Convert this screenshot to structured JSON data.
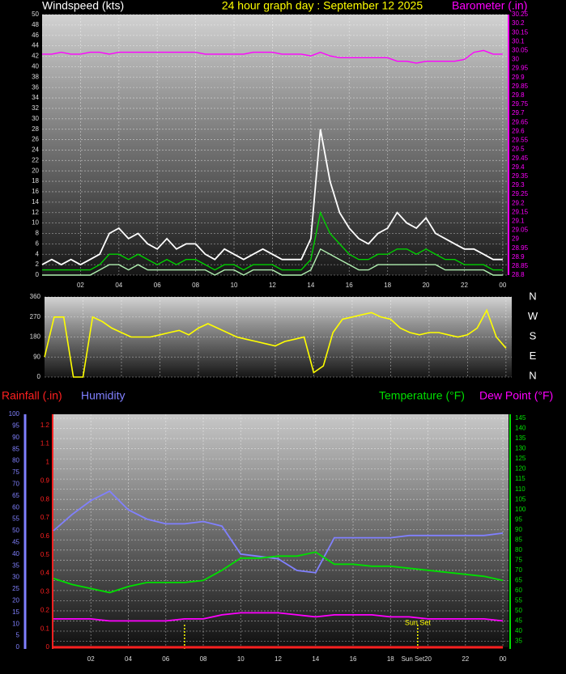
{
  "chart_data": [
    {
      "type": "line",
      "title": "24 hour graph day : September 12 2025",
      "y_label": "Windspeed (kts)",
      "y2_label": "Barometer (.in)",
      "x": [
        0,
        0.5,
        1,
        1.5,
        2,
        2.5,
        3,
        3.5,
        4,
        4.5,
        5,
        5.5,
        6,
        6.5,
        7,
        7.5,
        8,
        8.5,
        9,
        9.5,
        10,
        10.5,
        11,
        11.5,
        12,
        12.5,
        13,
        13.5,
        14,
        14.5,
        15,
        15.5,
        16,
        16.5,
        17,
        17.5,
        18,
        18.5,
        19,
        19.5,
        20,
        20.5,
        21,
        21.5,
        22,
        22.5,
        23,
        23.5,
        24
      ],
      "xlim": [
        0,
        24.3
      ],
      "xticks": [
        {
          "value": 2,
          "label": "02"
        },
        {
          "value": 4,
          "label": "04"
        },
        {
          "value": 6,
          "label": "06"
        },
        {
          "value": 8,
          "label": "08"
        },
        10,
        12,
        14,
        16,
        18,
        20,
        22,
        {
          "value": 24,
          "label": "00"
        }
      ],
      "ylim": [
        0,
        50
      ],
      "yticks": [
        0,
        2,
        4,
        6,
        8,
        10,
        12,
        14,
        16,
        18,
        20,
        22,
        24,
        26,
        28,
        30,
        32,
        34,
        36,
        38,
        40,
        42,
        44,
        46,
        48,
        50
      ],
      "y2lim": [
        28.8,
        30.25
      ],
      "y2ticks": [
        28.8,
        28.85,
        28.9,
        28.95,
        29,
        29.05,
        29.1,
        29.15,
        29.2,
        29.25,
        29.3,
        29.35,
        29.4,
        29.45,
        29.5,
        29.55,
        29.6,
        29.65,
        29.7,
        29.75,
        29.8,
        29.85,
        29.9,
        29.95,
        30,
        30.05,
        30.1,
        30.15,
        30.2,
        30.25
      ],
      "grid": true,
      "series": [
        {
          "color": "#ffffff",
          "values": [
            2,
            3,
            2,
            3,
            2,
            3,
            4,
            8,
            9,
            7,
            8,
            6,
            5,
            7,
            5,
            6,
            6,
            4,
            3,
            5,
            4,
            3,
            4,
            5,
            4,
            3,
            3,
            3,
            7,
            28,
            18,
            12,
            9,
            7,
            6,
            8,
            9,
            12,
            10,
            9,
            11,
            8,
            7,
            6,
            5,
            5,
            4,
            3,
            3
          ]
        },
        {
          "color": "#00d000",
          "values": [
            1,
            1,
            1,
            1,
            1,
            1,
            2,
            4,
            4,
            3,
            4,
            3,
            2,
            3,
            2,
            3,
            3,
            2,
            1,
            2,
            2,
            1,
            2,
            2,
            2,
            1,
            1,
            1,
            3,
            12,
            8,
            6,
            4,
            3,
            3,
            4,
            4,
            5,
            5,
            4,
            5,
            4,
            3,
            3,
            2,
            2,
            2,
            1,
            1
          ]
        },
        {
          "color": "#b0f0b0",
          "values": [
            0,
            0,
            0,
            0,
            0,
            0,
            1,
            2,
            2,
            1,
            2,
            1,
            1,
            1,
            1,
            1,
            1,
            1,
            0,
            1,
            1,
            0,
            1,
            1,
            1,
            0,
            0,
            0,
            1,
            5,
            4,
            3,
            2,
            1,
            1,
            2,
            2,
            2,
            2,
            2,
            2,
            2,
            1,
            1,
            1,
            1,
            1,
            0,
            0
          ]
        },
        {
          "color": "#ff00ff",
          "axis": "y2",
          "values": [
            30.03,
            30.03,
            30.04,
            30.03,
            30.03,
            30.04,
            30.04,
            30.03,
            30.04,
            30.04,
            30.04,
            30.04,
            30.04,
            30.04,
            30.04,
            30.04,
            30.04,
            30.03,
            30.03,
            30.03,
            30.03,
            30.03,
            30.04,
            30.04,
            30.04,
            30.03,
            30.03,
            30.03,
            30.02,
            30.04,
            30.02,
            30.01,
            30.01,
            30.01,
            30.01,
            30.01,
            30.01,
            29.99,
            29.99,
            29.98,
            29.99,
            29.99,
            29.99,
            29.99,
            30.0,
            30.04,
            30.05,
            30.03,
            30.03
          ]
        }
      ]
    },
    {
      "type": "line",
      "x": [
        0,
        0.5,
        1,
        1.5,
        2,
        2.5,
        3,
        3.5,
        4,
        4.5,
        5,
        5.5,
        6,
        6.5,
        7,
        7.5,
        8,
        8.5,
        9,
        9.5,
        10,
        10.5,
        11,
        11.5,
        12,
        12.5,
        13,
        13.5,
        14,
        14.5,
        15,
        15.5,
        16,
        16.5,
        17,
        17.5,
        18,
        18.5,
        19,
        19.5,
        20,
        20.5,
        21,
        21.5,
        22,
        22.5,
        23,
        23.5,
        24
      ],
      "xlim": [
        0,
        24.3
      ],
      "ylim": [
        0,
        360
      ],
      "yticks": [
        0,
        90,
        180,
        270,
        360
      ],
      "grid": true,
      "compass": [
        "N",
        "W",
        "S",
        "E",
        "N"
      ],
      "series": [
        {
          "color": "#ffff00",
          "values": [
            90,
            270,
            270,
            0,
            0,
            270,
            250,
            220,
            200,
            180,
            180,
            180,
            190,
            200,
            210,
            190,
            220,
            240,
            220,
            200,
            180,
            170,
            160,
            150,
            140,
            160,
            170,
            180,
            20,
            50,
            200,
            260,
            270,
            280,
            290,
            270,
            260,
            220,
            200,
            190,
            200,
            200,
            190,
            180,
            190,
            220,
            300,
            180,
            130
          ]
        }
      ]
    },
    {
      "type": "line",
      "x": [
        0,
        1,
        2,
        3,
        4,
        5,
        6,
        7,
        8,
        9,
        10,
        11,
        12,
        13,
        14,
        15,
        16,
        17,
        18,
        19,
        20,
        21,
        22,
        23,
        24
      ],
      "xlim": [
        0,
        24.3
      ],
      "xticks": [
        {
          "value": 2,
          "label": "02"
        },
        {
          "value": 4,
          "label": "04"
        },
        {
          "value": 6,
          "label": "06"
        },
        {
          "value": 8,
          "label": "08"
        },
        10,
        12,
        14,
        16,
        18,
        20,
        22,
        {
          "value": 24,
          "label": "00"
        }
      ],
      "ylim": [
        0,
        100
      ],
      "yticks": [
        0,
        5,
        10,
        15,
        20,
        25,
        30,
        35,
        40,
        45,
        50,
        55,
        60,
        65,
        70,
        75,
        80,
        85,
        90,
        95,
        100
      ],
      "y2lim": [
        32,
        147
      ],
      "y2ticks": [
        35,
        40,
        45,
        50,
        55,
        60,
        65,
        70,
        75,
        80,
        85,
        90,
        95,
        100,
        105,
        110,
        115,
        120,
        125,
        130,
        135,
        140,
        145
      ],
      "y3lim": [
        0,
        1.26
      ],
      "y3ticks": [
        0,
        0.1,
        0.2,
        0.3,
        0.4,
        0.5,
        0.6,
        0.7,
        0.8,
        0.9,
        1,
        1.1,
        1.2
      ],
      "grid": true,
      "event_lines": [
        7.0,
        19.45
      ],
      "annotations": [
        {
          "text": "Sun Set",
          "x": 19.45
        }
      ],
      "series": [
        {
          "name": "Rainfall (.in)",
          "color": "#ff2020",
          "axis": "y3",
          "values": [
            0,
            0,
            0,
            0,
            0,
            0,
            0,
            0,
            0,
            0,
            0,
            0,
            0,
            0,
            0,
            0,
            0,
            0,
            0,
            0,
            0,
            0,
            0,
            0,
            0
          ]
        },
        {
          "name": "Humidity",
          "color": "#8080ff",
          "values": [
            50,
            57,
            63,
            67,
            59,
            55,
            53,
            53,
            54,
            52,
            40,
            39,
            38,
            33,
            32,
            47,
            47,
            47,
            47,
            48,
            48,
            48,
            48,
            48,
            49
          ]
        },
        {
          "name": "Temperature (°F)",
          "color": "#00e000",
          "axis": "y2",
          "values": [
            66,
            63,
            61,
            59,
            62,
            64,
            64,
            64,
            65,
            70,
            76,
            76,
            77,
            77,
            79,
            73,
            73,
            72,
            72,
            71,
            70,
            69,
            68,
            67,
            65
          ]
        },
        {
          "name": "Dew Point (°F)",
          "color": "#ff00ff",
          "axis": "y2",
          "values": [
            46,
            46,
            46,
            45,
            45,
            45,
            45,
            46,
            46,
            48,
            49,
            49,
            49,
            48,
            47,
            48,
            48,
            48,
            47,
            47,
            46,
            46,
            46,
            46,
            45
          ]
        }
      ]
    }
  ]
}
